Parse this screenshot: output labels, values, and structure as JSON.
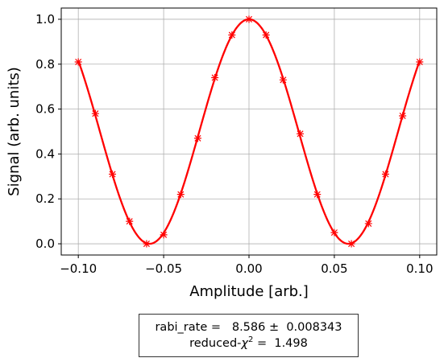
{
  "chart_data": {
    "type": "line",
    "xlabel": "Amplitude [arb.]",
    "ylabel": "Signal (arb. units)",
    "xlim": [
      -0.11,
      0.11
    ],
    "ylim": [
      -0.05,
      1.05
    ],
    "xticks": [
      -0.1,
      -0.05,
      0.0,
      0.05,
      0.1
    ],
    "xtick_labels": [
      "−0.10",
      "−0.05",
      "0.00",
      "0.05",
      "0.10"
    ],
    "yticks": [
      0.0,
      0.2,
      0.4,
      0.6,
      0.8,
      1.0
    ],
    "ytick_labels": [
      "0.0",
      "0.2",
      "0.4",
      "0.6",
      "0.8",
      "1.0"
    ],
    "grid": true,
    "color": "#ff0000",
    "series": [
      {
        "kind": "scatter",
        "marker": "asterisk",
        "x": [
          -0.1,
          -0.09,
          -0.08,
          -0.07,
          -0.06,
          -0.05,
          -0.04,
          -0.03,
          -0.02,
          -0.01,
          0.0,
          0.01,
          0.02,
          0.03,
          0.04,
          0.05,
          0.06,
          0.07,
          0.08,
          0.09,
          0.1
        ],
        "y": [
          0.81,
          0.58,
          0.31,
          0.1,
          0.0,
          0.04,
          0.22,
          0.47,
          0.74,
          0.93,
          1.0,
          0.93,
          0.73,
          0.49,
          0.22,
          0.05,
          0.0,
          0.09,
          0.31,
          0.57,
          0.81
        ]
      },
      {
        "kind": "fit",
        "model": "cos^2(pi * rabi_rate * x)",
        "rabi_rate": 8.586
      }
    ]
  },
  "fit_box": {
    "line1": "rabi_rate =   8.586 ±  0.008343",
    "line2_prefix": "reduced-",
    "line2_symbol": "χ",
    "line2_sup": "2",
    "line2_suffix": " =  1.498"
  }
}
